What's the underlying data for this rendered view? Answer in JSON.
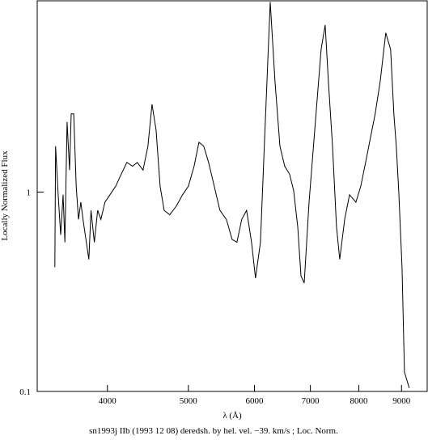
{
  "chart_data": {
    "type": "line",
    "title": "sn1993j IIb (1993 12 08) deredsh. by hel. vel.   −39. km/s ;  Loc. Norm.",
    "x_label": "λ (Å)",
    "y_label": "Locally Normalized Flux",
    "x_log": true,
    "y_log": true,
    "xlim": [
      3296,
      9660
    ],
    "ylim": [
      0.1,
      9.12
    ],
    "xticks": [
      4000,
      5000,
      6000,
      7000,
      8000,
      9000
    ],
    "yticks": [
      0.1,
      1
    ],
    "series": [
      {
        "color": "#000000",
        "x": [
          3460,
          3467,
          3492,
          3516,
          3540,
          3557,
          3579,
          3604,
          3620,
          3645,
          3670,
          3693,
          3717,
          3740,
          3774,
          3800,
          3823,
          3858,
          3894,
          3929,
          3973,
          4028,
          4092,
          4155,
          4220,
          4288,
          4343,
          4413,
          4472,
          4523,
          4574,
          4625,
          4677,
          4750,
          4835,
          4921,
          5000,
          5080,
          5148,
          5217,
          5287,
          5370,
          5455,
          5553,
          5640,
          5716,
          5793,
          5871,
          5951,
          6017,
          6099,
          6182,
          6266,
          6349,
          6436,
          6522,
          6609,
          6684,
          6760,
          6821,
          6882,
          6975,
          7097,
          7211,
          7291,
          7357,
          7440,
          7523,
          7590,
          7694,
          7797,
          7937,
          8044,
          8152,
          8260,
          8370,
          8485,
          8617,
          8733,
          8811,
          8871,
          8931,
          9013,
          9073,
          9134,
          9193
        ],
        "values": [
          0.42,
          1.7,
          0.97,
          0.61,
          0.97,
          0.56,
          2.25,
          1.29,
          2.47,
          2.47,
          1.07,
          0.73,
          0.89,
          0.73,
          0.56,
          0.46,
          0.81,
          0.56,
          0.81,
          0.73,
          0.89,
          0.97,
          1.07,
          1.23,
          1.41,
          1.35,
          1.41,
          1.29,
          1.7,
          2.76,
          2.05,
          1.07,
          0.81,
          0.77,
          0.85,
          0.97,
          1.07,
          1.35,
          1.78,
          1.7,
          1.41,
          1.07,
          0.81,
          0.73,
          0.58,
          0.56,
          0.73,
          0.81,
          0.56,
          0.37,
          0.56,
          2.25,
          9.0,
          3.59,
          1.7,
          1.35,
          1.23,
          1.02,
          0.67,
          0.38,
          0.35,
          0.89,
          2.25,
          5.2,
          6.9,
          3.59,
          1.7,
          0.67,
          0.46,
          0.73,
          0.97,
          0.89,
          1.07,
          1.41,
          1.87,
          2.47,
          3.59,
          6.3,
          5.2,
          2.47,
          1.7,
          1.02,
          0.42,
          0.125,
          0.114,
          0.104
        ]
      }
    ]
  }
}
